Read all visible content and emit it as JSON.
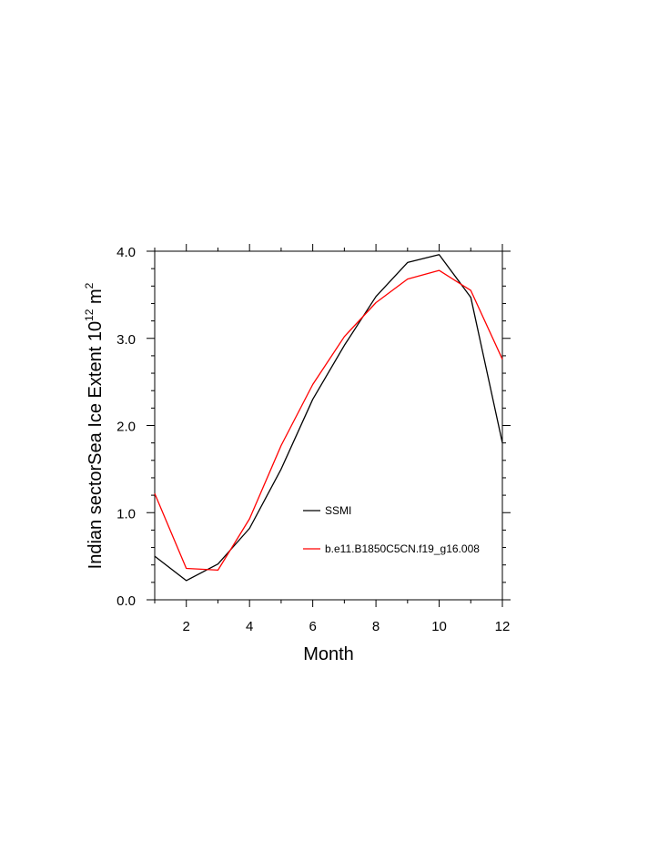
{
  "chart_data": {
    "type": "line",
    "title": "",
    "xlabel": "Month",
    "ylabel": {
      "prefix": "Indian sectorSea Ice Extent 10",
      "exp1": "12",
      "mid": " m",
      "exp2": "2"
    },
    "xlim": [
      1,
      12
    ],
    "ylim": [
      0,
      4
    ],
    "xticks": [
      2,
      4,
      6,
      8,
      10,
      12
    ],
    "yticks": [
      0,
      1,
      2,
      3,
      4
    ],
    "ytick_labels": [
      "0.0",
      "1.0",
      "2.0",
      "3.0",
      "4.0"
    ],
    "x": [
      1,
      2,
      3,
      4,
      5,
      6,
      7,
      8,
      9,
      10,
      11,
      12
    ],
    "series": [
      {
        "name": "SSMI",
        "color": "#000000",
        "values": [
          0.5,
          0.22,
          0.41,
          0.82,
          1.5,
          2.3,
          2.92,
          3.48,
          3.87,
          3.96,
          3.47,
          1.8
        ]
      },
      {
        "name": "b.e11.B1850C5CN.f19_g16.008",
        "color": "#ff0000",
        "values": [
          1.22,
          0.36,
          0.34,
          0.93,
          1.77,
          2.47,
          3.02,
          3.41,
          3.68,
          3.78,
          3.55,
          2.76
        ]
      }
    ],
    "legend": {
      "placement": "lower-center-inside"
    },
    "grid": false
  }
}
